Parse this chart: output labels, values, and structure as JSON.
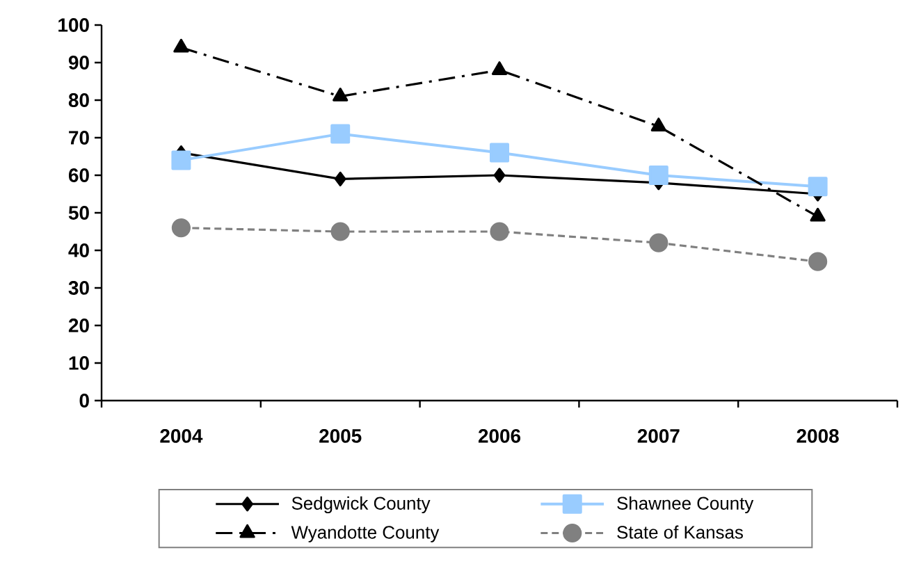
{
  "chart_data": {
    "type": "line",
    "categories": [
      "2004",
      "2005",
      "2006",
      "2007",
      "2008"
    ],
    "series": [
      {
        "name": "Sedgwick County",
        "color": "#000000",
        "marker": "diamond",
        "line_style": "solid",
        "values": [
          66,
          59,
          60,
          58,
          55
        ]
      },
      {
        "name": "Shawnee County",
        "color": "#99ccff",
        "marker": "square",
        "line_style": "solid",
        "values": [
          64,
          71,
          66,
          60,
          57
        ]
      },
      {
        "name": "Wyandotte County",
        "color": "#000000",
        "marker": "triangle",
        "line_style": "dashdot",
        "values": [
          94,
          81,
          88,
          73,
          49
        ]
      },
      {
        "name": "State of Kansas",
        "color": "#808080",
        "marker": "circle",
        "line_style": "dashed",
        "values": [
          46,
          45,
          45,
          42,
          37
        ]
      }
    ],
    "ylim": [
      0,
      100
    ],
    "yticks": [
      0,
      10,
      20,
      30,
      40,
      50,
      60,
      70,
      80,
      90,
      100
    ],
    "grid": false,
    "legend": "bottom"
  }
}
